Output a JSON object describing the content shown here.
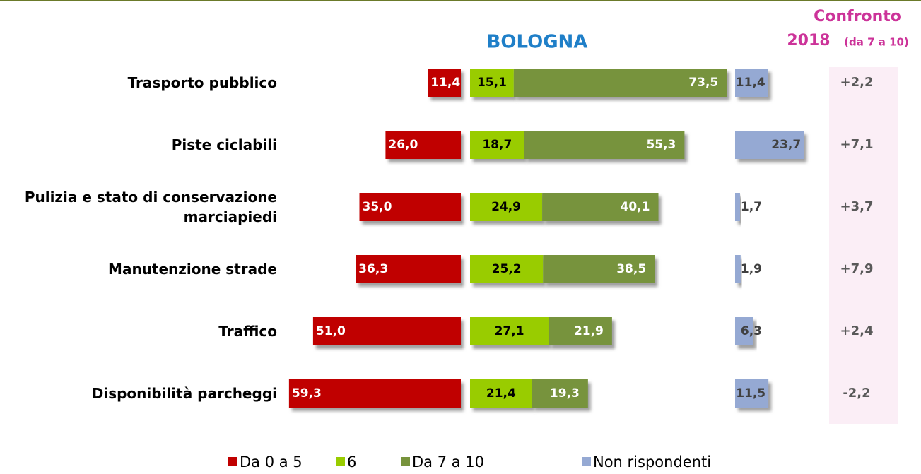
{
  "chart_data": {
    "type": "diverging_bar",
    "title": "BOLOGNA",
    "categories": [
      "Trasporto pubblico",
      "Piste ciclabili",
      "Pulizia e stato di conservazione marciapiedi",
      "Manutenzione strade",
      "Traffico",
      "Disponibilità parcheggi"
    ],
    "series": [
      {
        "name": "Da 0 a 5",
        "color": "#c00000",
        "values": [
          11.4,
          26.0,
          35.0,
          36.3,
          51.0,
          59.3
        ],
        "value_labels": [
          "11,4",
          "26,0",
          "35,0",
          "36,3",
          "51,0",
          "59,3"
        ]
      },
      {
        "name": "6",
        "color": "#99cc00",
        "values": [
          15.1,
          18.7,
          24.9,
          25.2,
          27.1,
          21.4
        ],
        "value_labels": [
          "15,1",
          "18,7",
          "24,9",
          "25,2",
          "27,1",
          "21,4"
        ]
      },
      {
        "name": "Da 7 a 10",
        "color": "#77933c",
        "values": [
          73.5,
          55.3,
          40.1,
          38.5,
          21.9,
          19.3
        ],
        "value_labels": [
          "73,5",
          "55,3",
          "40,1",
          "38,5",
          "21,9",
          "19,3"
        ]
      },
      {
        "name": "Non rispondenti",
        "color": "#95a9d3",
        "values": [
          11.4,
          23.7,
          1.7,
          1.9,
          6.3,
          11.5
        ],
        "value_labels": [
          "11,4",
          "23,7",
          "1,7",
          "1,9",
          "6,3",
          "11,5"
        ]
      }
    ],
    "comparison": {
      "title": "Confronto",
      "year": "2018",
      "note": "(da 7 a 10)",
      "values": [
        2.2,
        7.1,
        3.7,
        7.9,
        2.4,
        -2.2
      ],
      "value_labels": [
        "+2,2",
        "+7,1",
        "+3,7",
        "+7,9",
        "+2,4",
        "-2,2"
      ]
    },
    "legend": "bottom"
  }
}
